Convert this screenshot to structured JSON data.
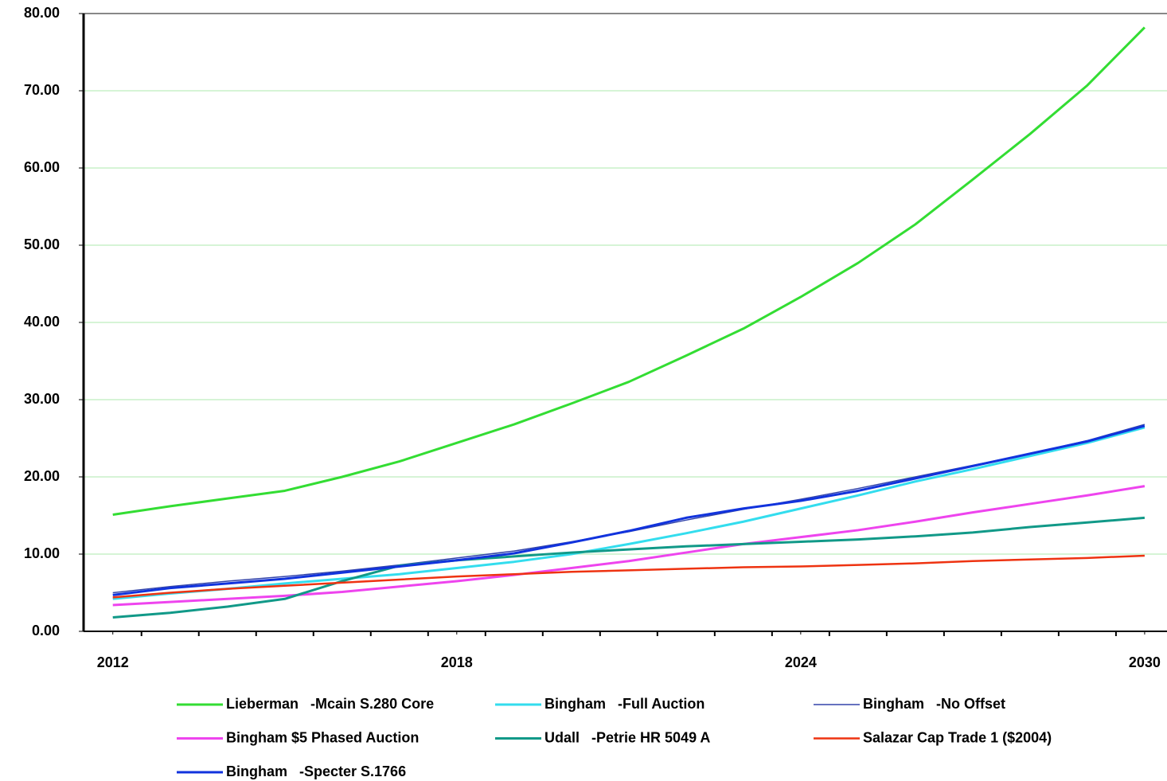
{
  "chart_data": {
    "type": "line",
    "x": [
      2012,
      2013,
      2014,
      2015,
      2016,
      2017,
      2018,
      2019,
      2020,
      2021,
      2022,
      2023,
      2024,
      2025,
      2026,
      2027,
      2028,
      2029,
      2030
    ],
    "xlim": [
      2011.49,
      2030.39
    ],
    "xticks": [
      2012,
      2018,
      2024,
      2030
    ],
    "ylim": [
      0,
      80
    ],
    "yticks": [
      {
        "value": 0,
        "label": "0.00"
      },
      {
        "value": 10,
        "label": "10.00"
      },
      {
        "value": 20,
        "label": "20.00"
      },
      {
        "value": 30,
        "label": "30.00"
      },
      {
        "value": 40,
        "label": "40.00"
      },
      {
        "value": 50,
        "label": "50.00"
      },
      {
        "value": 60,
        "label": "60.00"
      },
      {
        "value": 70,
        "label": "70.00"
      },
      {
        "value": 80,
        "label": "80.00"
      }
    ],
    "grid": true,
    "legend": "bottom",
    "series": [
      {
        "name": "Lieberman   -Mcain S.280 Core",
        "color": "#33dd33",
        "width": 3,
        "values": [
          15.1,
          16.2,
          17.2,
          18.2,
          20.0,
          22.0,
          24.4,
          26.8,
          29.5,
          32.3,
          35.7,
          39.2,
          43.3,
          47.7,
          52.7,
          58.5,
          64.4,
          70.7,
          78.2
        ]
      },
      {
        "name": "Bingham   -Full Auction",
        "color": "#33ddee",
        "width": 3,
        "values": [
          4.2,
          4.9,
          5.5,
          6.2,
          6.8,
          7.4,
          8.2,
          9.0,
          10.0,
          11.3,
          12.7,
          14.2,
          15.9,
          17.6,
          19.4,
          21.0,
          22.7,
          24.4,
          26.4
        ]
      },
      {
        "name": "Bingham   -No Offset",
        "color": "#3344aa",
        "width": 1.5,
        "values": [
          5.0,
          5.8,
          6.5,
          7.1,
          7.8,
          8.6,
          9.5,
          10.4,
          11.6,
          12.9,
          14.4,
          15.8,
          17.1,
          18.5,
          20.0,
          21.5,
          23.0,
          24.7,
          26.8
        ]
      },
      {
        "name": "Bingham $5 Phased Auction",
        "color": "#ee44ee",
        "width": 3,
        "values": [
          3.4,
          3.8,
          4.2,
          4.6,
          5.1,
          5.8,
          6.5,
          7.3,
          8.2,
          9.1,
          10.2,
          11.3,
          12.2,
          13.1,
          14.2,
          15.4,
          16.5,
          17.6,
          18.8
        ]
      },
      {
        "name": "Udall   -Petrie HR 5049 A",
        "color": "#119988",
        "width": 3,
        "values": [
          1.8,
          2.4,
          3.2,
          4.2,
          6.5,
          8.5,
          9.2,
          9.7,
          10.2,
          10.6,
          11.0,
          11.3,
          11.6,
          11.9,
          12.3,
          12.8,
          13.5,
          14.1,
          14.7
        ]
      },
      {
        "name": "Salazar Cap Trade 1 ($2004)",
        "color": "#ee3311",
        "width": 2.5,
        "values": [
          4.4,
          5.0,
          5.5,
          5.9,
          6.3,
          6.7,
          7.1,
          7.4,
          7.7,
          7.9,
          8.1,
          8.3,
          8.4,
          8.6,
          8.8,
          9.1,
          9.3,
          9.5,
          9.8
        ]
      },
      {
        "name": "Bingham   -Specter S.1766",
        "color": "#1133dd",
        "width": 3,
        "values": [
          4.7,
          5.6,
          6.2,
          6.8,
          7.6,
          8.4,
          9.2,
          10.1,
          11.5,
          13.0,
          14.7,
          15.9,
          16.9,
          18.2,
          19.8,
          21.4,
          23.0,
          24.6,
          26.6
        ]
      }
    ]
  }
}
